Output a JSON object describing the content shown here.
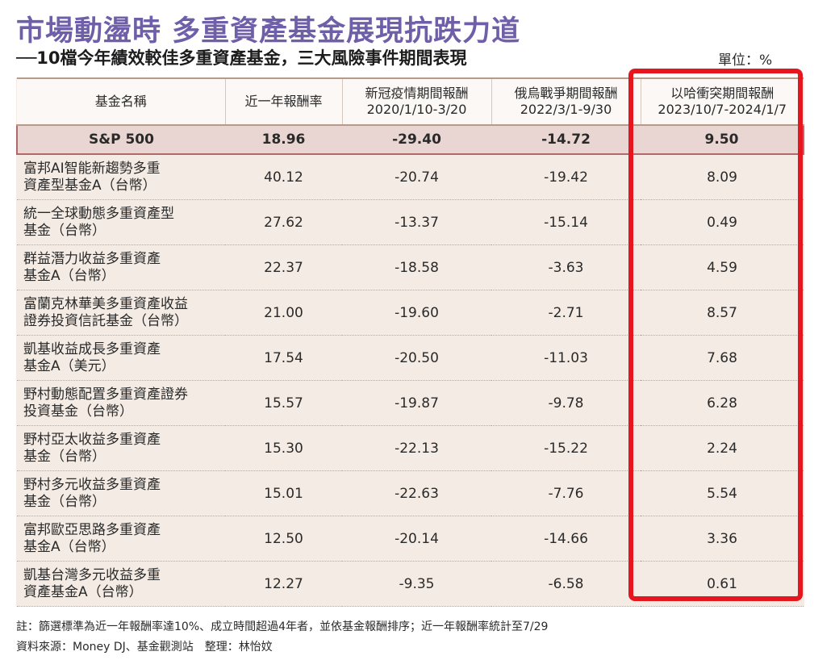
{
  "title": "市場動盪時 多重資產基金展現抗跌力道",
  "subtitle": "──10檔今年績效較佳多重資產基金，三大風險事件期間表現",
  "unit": "單位：%",
  "chart_data": {
    "type": "table",
    "columns": [
      {
        "label": "基金名稱",
        "sub": ""
      },
      {
        "label": "近一年報酬率",
        "sub": ""
      },
      {
        "label": "新冠疫情期間報酬",
        "sub": "2020/1/10-3/20"
      },
      {
        "label": "俄烏戰爭期間報酬",
        "sub": "2022/3/1-9/30"
      },
      {
        "label": "以哈衝突期間報酬",
        "sub": "2023/10/7-2024/1/7"
      }
    ],
    "benchmark": {
      "name": "S&P 500",
      "values": [
        "18.96",
        "-29.40",
        "-14.72",
        "9.50"
      ]
    },
    "rows": [
      {
        "name1": "富邦AI智能新趨勢多重",
        "name2": "資產型基金A（台幣）",
        "values": [
          "40.12",
          "-20.74",
          "-19.42",
          "8.09"
        ]
      },
      {
        "name1": "統一全球動態多重資產型",
        "name2": "基金（台幣）",
        "values": [
          "27.62",
          "-13.37",
          "-15.14",
          "0.49"
        ]
      },
      {
        "name1": "群益潛力收益多重資產",
        "name2": "基金A（台幣）",
        "values": [
          "22.37",
          "-18.58",
          "-3.63",
          "4.59"
        ]
      },
      {
        "name1": "富蘭克林華美多重資產收益",
        "name2": "證券投資信託基金（台幣）",
        "values": [
          "21.00",
          "-19.60",
          "-2.71",
          "8.57"
        ]
      },
      {
        "name1": "凱基收益成長多重資產",
        "name2": "基金A（美元）",
        "values": [
          "17.54",
          "-20.50",
          "-11.03",
          "7.68"
        ]
      },
      {
        "name1": "野村動態配置多重資產證券",
        "name2": "投資基金（台幣）",
        "values": [
          "15.57",
          "-19.87",
          "-9.78",
          "6.28"
        ]
      },
      {
        "name1": "野村亞太收益多重資產",
        "name2": "基金（台幣）",
        "values": [
          "15.30",
          "-22.13",
          "-15.22",
          "2.24"
        ]
      },
      {
        "name1": "野村多元收益多重資產",
        "name2": "基金（台幣）",
        "values": [
          "15.01",
          "-22.63",
          "-7.76",
          "5.54"
        ]
      },
      {
        "name1": "富邦歐亞思路多重資產",
        "name2": "基金A（台幣）",
        "values": [
          "12.50",
          "-20.14",
          "-14.66",
          "3.36"
        ]
      },
      {
        "name1": "凱基台灣多元收益多重",
        "name2": "資產基金A（台幣）",
        "values": [
          "12.27",
          "-9.35",
          "-6.58",
          "0.61"
        ]
      }
    ],
    "highlight_column": 4,
    "highlight_color": "#e5161d"
  },
  "footnote": "註：篩選標準為近一年報酬率達10%、成立時間超過4年者，並依基金報酬排序；近一年報酬率統計至7/29",
  "source": "資料來源：Money DJ、基金觀測站　整理：林怡妏"
}
